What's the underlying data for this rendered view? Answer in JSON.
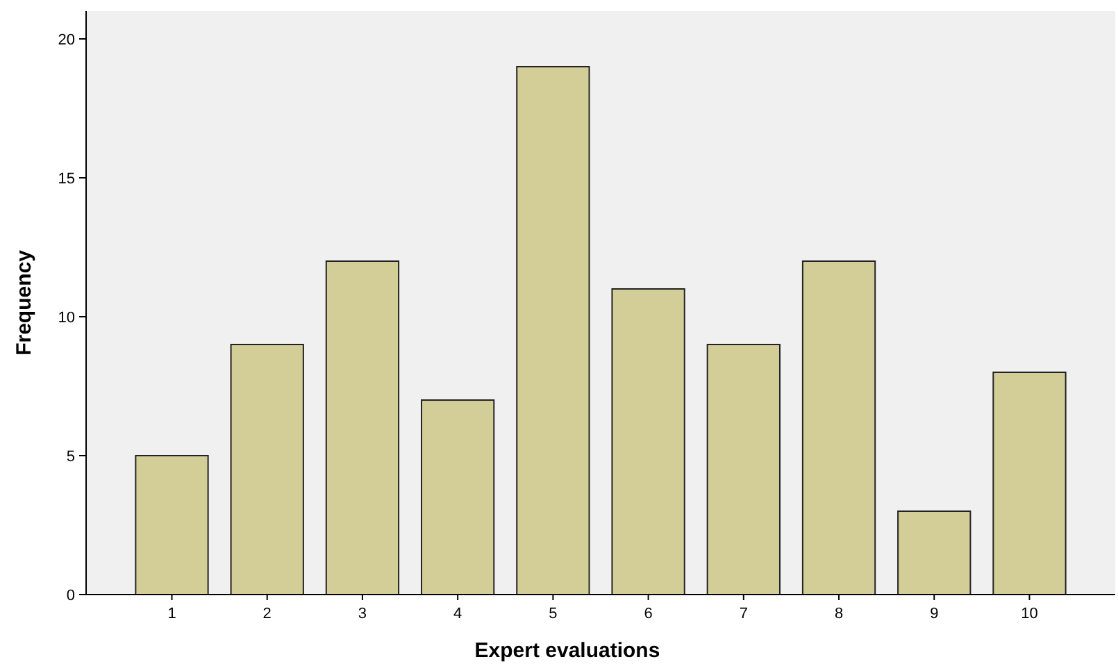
{
  "chart_data": {
    "type": "bar",
    "xlabel": "Expert evaluations",
    "ylabel": "Frequency",
    "categories": [
      "1",
      "2",
      "3",
      "4",
      "5",
      "6",
      "7",
      "8",
      "9",
      "10"
    ],
    "values": [
      5,
      9,
      12,
      7,
      19,
      11,
      9,
      12,
      3,
      8
    ],
    "color": "#d3ce97",
    "ylim": [
      0,
      21
    ],
    "yticks": [
      0,
      5,
      10,
      15,
      20
    ],
    "grid": false
  }
}
